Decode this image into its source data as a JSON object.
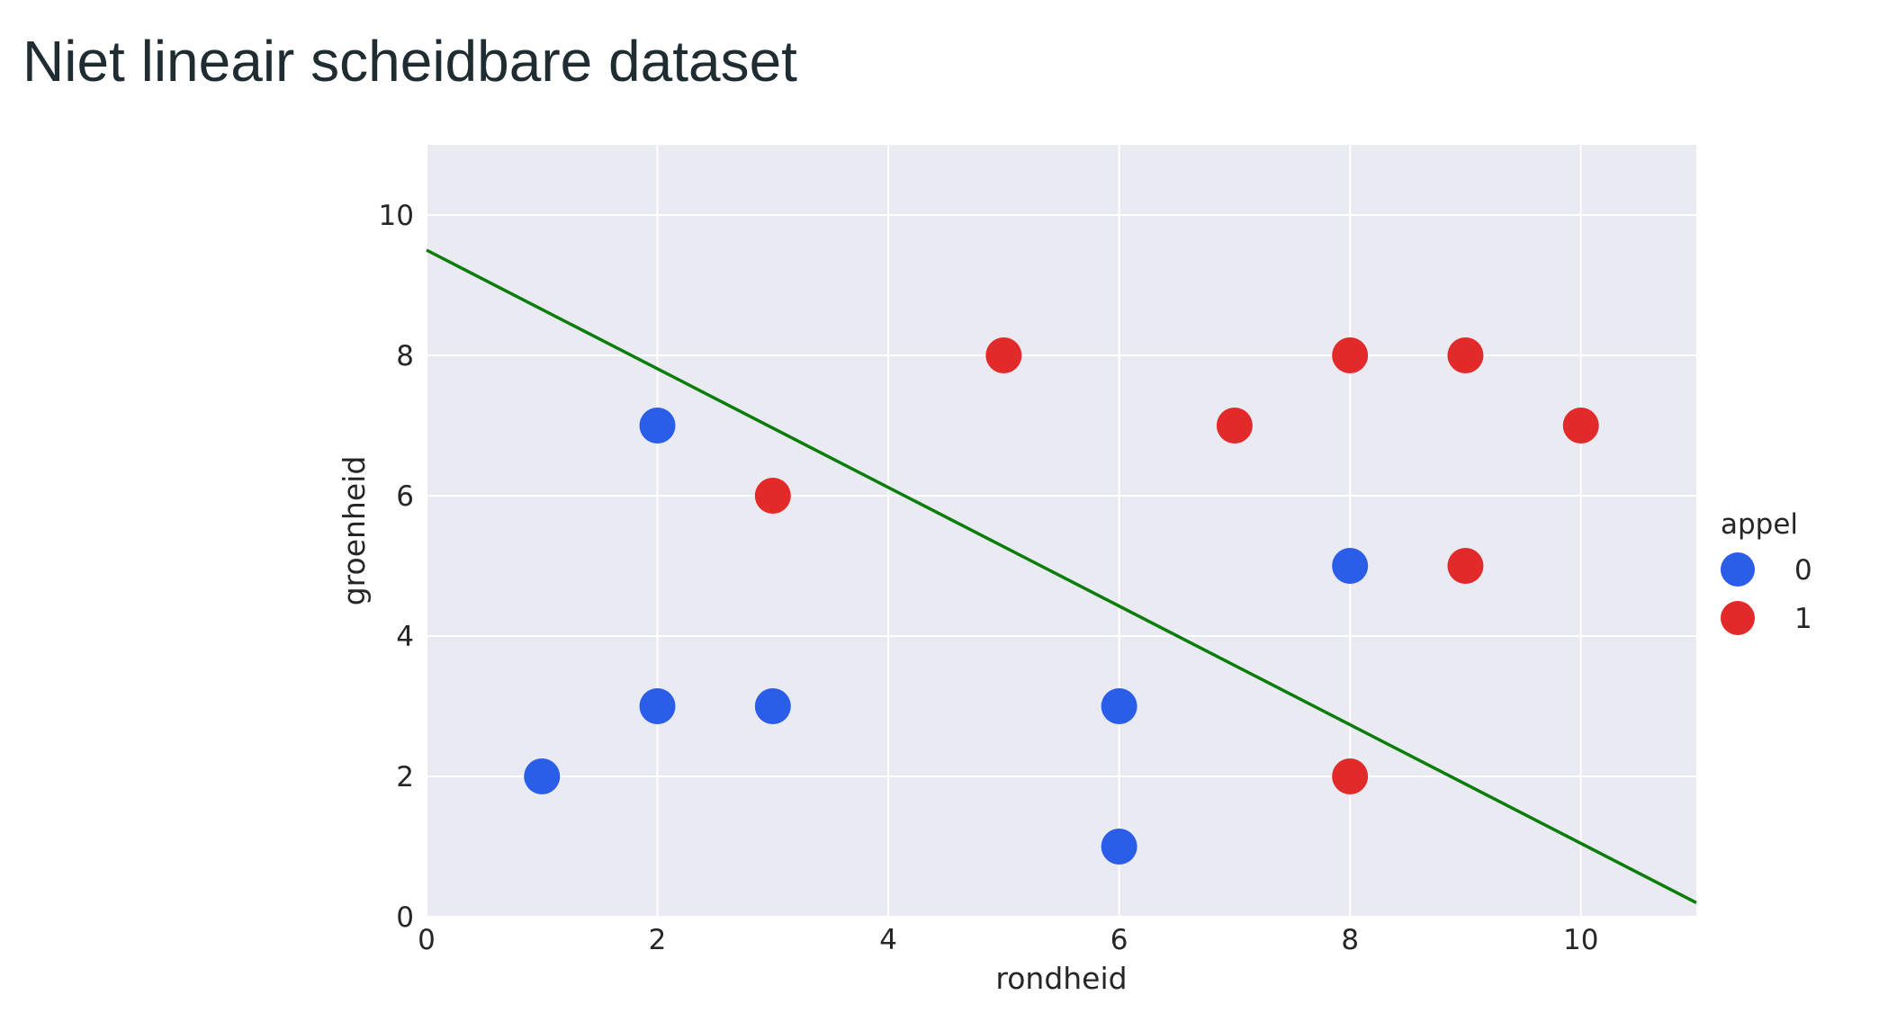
{
  "page": {
    "title": "Niet lineair scheidbare dataset"
  },
  "chart_data": {
    "type": "scatter",
    "title": "",
    "xlabel": "rondheid",
    "ylabel": "groenheid",
    "xlim": [
      0,
      11
    ],
    "ylim": [
      0,
      11
    ],
    "xticks": [
      0,
      2,
      4,
      6,
      8,
      10
    ],
    "yticks": [
      0,
      2,
      4,
      6,
      8,
      10
    ],
    "grid": true,
    "background_color": "#eaeaf2",
    "legend": {
      "title": "appel",
      "placement": "outside-right"
    },
    "series": [
      {
        "name": "0",
        "color": "#2a5ee8",
        "x": [
          1,
          2,
          2,
          3,
          6,
          6,
          8
        ],
        "y": [
          2,
          3,
          7,
          3,
          3,
          1,
          5
        ]
      },
      {
        "name": "1",
        "color": "#e32a2a",
        "x": [
          3,
          5,
          7,
          8,
          8,
          9,
          9,
          10
        ],
        "y": [
          6,
          8,
          7,
          8,
          2,
          8,
          5,
          7
        ]
      }
    ],
    "line": {
      "color": "#0b7d0b",
      "x": [
        0,
        11
      ],
      "y": [
        9.5,
        0.2
      ]
    }
  }
}
